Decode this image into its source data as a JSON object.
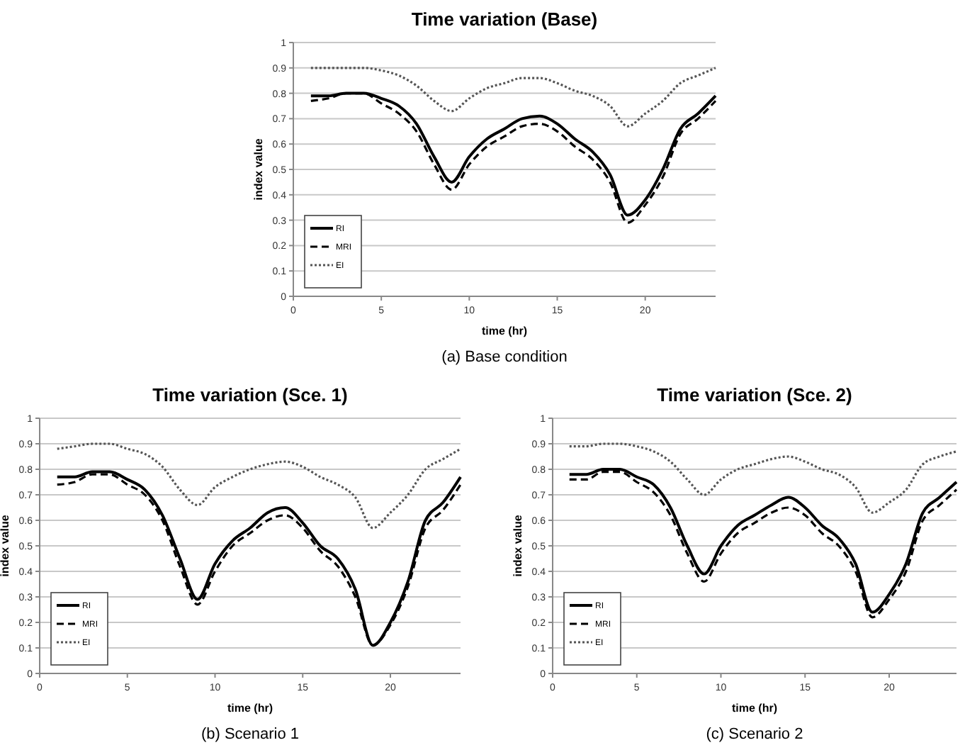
{
  "chart_data": [
    {
      "type": "line",
      "title": "Time variation (Base)",
      "xlabel": "time (hr)",
      "ylabel": "index value",
      "annotations": [
        "(a) Base condition"
      ],
      "x": [
        1,
        2,
        3,
        4,
        5,
        6,
        7,
        8,
        9,
        10,
        11,
        12,
        13,
        14,
        15,
        16,
        17,
        18,
        19,
        20,
        21,
        22,
        23,
        24
      ],
      "xlim": [
        0,
        24
      ],
      "xticks": [
        0,
        5,
        10,
        15,
        20
      ],
      "ylim": [
        0,
        1
      ],
      "yticks": [
        0,
        0.1,
        0.2,
        0.3,
        0.4,
        0.5,
        0.6,
        0.7,
        0.8,
        0.9,
        1
      ],
      "grid": "y",
      "legend": "bottom left",
      "series": [
        {
          "name": "RI",
          "color": "#000000",
          "line_style": "solid",
          "values": [
            0.79,
            0.79,
            0.8,
            0.8,
            0.78,
            0.75,
            0.68,
            0.55,
            0.45,
            0.55,
            0.62,
            0.66,
            0.7,
            0.71,
            0.68,
            0.62,
            0.57,
            0.48,
            0.32,
            0.38,
            0.5,
            0.66,
            0.72,
            0.79
          ]
        },
        {
          "name": "MRI",
          "color": "#000000",
          "line_style": "dashed",
          "values": [
            0.77,
            0.78,
            0.8,
            0.8,
            0.76,
            0.72,
            0.65,
            0.52,
            0.42,
            0.52,
            0.59,
            0.63,
            0.67,
            0.68,
            0.65,
            0.59,
            0.54,
            0.45,
            0.29,
            0.36,
            0.47,
            0.64,
            0.7,
            0.77
          ]
        },
        {
          "name": "EI",
          "color": "#555555",
          "line_style": "dotted",
          "values": [
            0.9,
            0.9,
            0.9,
            0.9,
            0.89,
            0.87,
            0.83,
            0.77,
            0.73,
            0.78,
            0.82,
            0.84,
            0.86,
            0.86,
            0.84,
            0.81,
            0.79,
            0.75,
            0.67,
            0.72,
            0.77,
            0.84,
            0.87,
            0.9
          ]
        }
      ]
    },
    {
      "type": "line",
      "title": "Time variation (Sce. 1)",
      "xlabel": "time (hr)",
      "ylabel": "index value",
      "annotations": [
        "(b) Scenario 1"
      ],
      "x": [
        1,
        2,
        3,
        4,
        5,
        6,
        7,
        8,
        9,
        10,
        11,
        12,
        13,
        14,
        15,
        16,
        17,
        18,
        19,
        20,
        21,
        22,
        23,
        24
      ],
      "xlim": [
        0,
        24
      ],
      "xticks": [
        0,
        5,
        10,
        15,
        20
      ],
      "ylim": [
        0,
        1
      ],
      "yticks": [
        0,
        0.1,
        0.2,
        0.3,
        0.4,
        0.5,
        0.6,
        0.7,
        0.8,
        0.9,
        1
      ],
      "grid": "y",
      "legend": "bottom left",
      "series": [
        {
          "name": "RI",
          "color": "#000000",
          "line_style": "solid",
          "values": [
            0.77,
            0.77,
            0.79,
            0.79,
            0.76,
            0.72,
            0.62,
            0.45,
            0.29,
            0.43,
            0.52,
            0.57,
            0.63,
            0.65,
            0.59,
            0.5,
            0.45,
            0.33,
            0.11,
            0.2,
            0.36,
            0.6,
            0.67,
            0.77
          ]
        },
        {
          "name": "MRI",
          "color": "#000000",
          "line_style": "dashed",
          "values": [
            0.74,
            0.75,
            0.78,
            0.78,
            0.74,
            0.7,
            0.6,
            0.42,
            0.27,
            0.4,
            0.5,
            0.55,
            0.6,
            0.62,
            0.57,
            0.48,
            0.42,
            0.3,
            0.11,
            0.19,
            0.34,
            0.57,
            0.64,
            0.74
          ]
        },
        {
          "name": "EI",
          "color": "#555555",
          "line_style": "dotted",
          "values": [
            0.88,
            0.89,
            0.9,
            0.9,
            0.88,
            0.86,
            0.81,
            0.72,
            0.66,
            0.73,
            0.77,
            0.8,
            0.82,
            0.83,
            0.81,
            0.77,
            0.74,
            0.69,
            0.57,
            0.63,
            0.7,
            0.8,
            0.84,
            0.88
          ]
        }
      ]
    },
    {
      "type": "line",
      "title": "Time variation (Sce. 2)",
      "xlabel": "time (hr)",
      "ylabel": "index value",
      "annotations": [
        "(c) Scenario 2"
      ],
      "x": [
        1,
        2,
        3,
        4,
        5,
        6,
        7,
        8,
        9,
        10,
        11,
        12,
        13,
        14,
        15,
        16,
        17,
        18,
        19,
        20,
        21,
        22,
        23,
        24
      ],
      "xlim": [
        0,
        24
      ],
      "xticks": [
        0,
        5,
        10,
        15,
        20
      ],
      "ylim": [
        0,
        1
      ],
      "yticks": [
        0,
        0.1,
        0.2,
        0.3,
        0.4,
        0.5,
        0.6,
        0.7,
        0.8,
        0.9,
        1
      ],
      "grid": "y",
      "legend": "bottom left",
      "series": [
        {
          "name": "RI",
          "color": "#000000",
          "line_style": "solid",
          "values": [
            0.78,
            0.78,
            0.8,
            0.8,
            0.77,
            0.74,
            0.65,
            0.5,
            0.39,
            0.5,
            0.58,
            0.62,
            0.66,
            0.69,
            0.65,
            0.58,
            0.53,
            0.43,
            0.24,
            0.31,
            0.43,
            0.63,
            0.69,
            0.75
          ]
        },
        {
          "name": "MRI",
          "color": "#000000",
          "line_style": "dashed",
          "values": [
            0.76,
            0.76,
            0.79,
            0.79,
            0.75,
            0.71,
            0.62,
            0.47,
            0.36,
            0.47,
            0.55,
            0.59,
            0.63,
            0.65,
            0.62,
            0.55,
            0.5,
            0.4,
            0.22,
            0.29,
            0.4,
            0.6,
            0.66,
            0.72
          ]
        },
        {
          "name": "EI",
          "color": "#555555",
          "line_style": "dotted",
          "values": [
            0.89,
            0.89,
            0.9,
            0.9,
            0.89,
            0.87,
            0.83,
            0.76,
            0.7,
            0.76,
            0.8,
            0.82,
            0.84,
            0.85,
            0.83,
            0.8,
            0.78,
            0.73,
            0.63,
            0.67,
            0.72,
            0.82,
            0.85,
            0.87
          ]
        }
      ]
    }
  ]
}
